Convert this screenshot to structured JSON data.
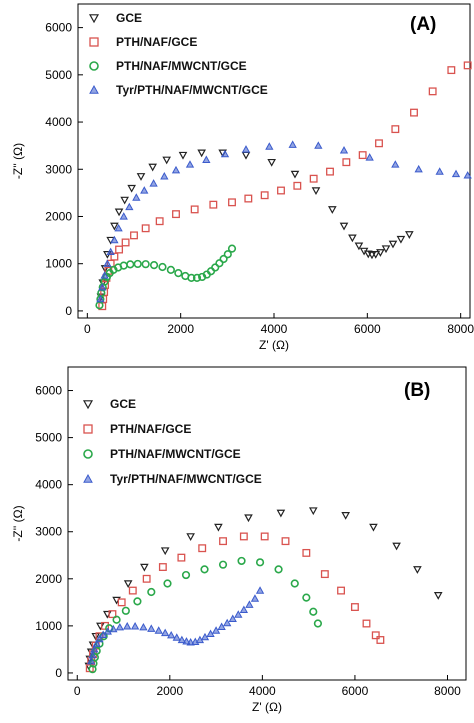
{
  "chart_data": [
    {
      "type": "scatter",
      "panel_label": "(A)",
      "xlabel": "Z' (Ω)",
      "ylabel": "-Z'' (Ω)",
      "xlim": [
        -200,
        8200
      ],
      "ylim": [
        -150,
        6500
      ],
      "x_ticks": [
        0,
        2000,
        4000,
        6000,
        8000
      ],
      "y_ticks": [
        0,
        1000,
        2000,
        3000,
        4000,
        5000,
        6000
      ],
      "legend_position": "top-left",
      "series": [
        {
          "name": "GCE",
          "color": "#222222",
          "marker": "triangle-down",
          "x": [
            290,
            330,
            380,
            430,
            500,
            580,
            680,
            800,
            950,
            1150,
            1400,
            1700,
            2050,
            2450,
            2900,
            3400,
            3950,
            4450,
            4900,
            5250,
            5500,
            5680,
            5820,
            5930,
            6020,
            6100,
            6180,
            6280,
            6400,
            6550,
            6720,
            6900
          ],
          "y": [
            300,
            600,
            900,
            1200,
            1500,
            1800,
            2100,
            2350,
            2600,
            2850,
            3050,
            3200,
            3300,
            3350,
            3350,
            3300,
            3150,
            2900,
            2550,
            2150,
            1800,
            1550,
            1380,
            1270,
            1210,
            1190,
            1200,
            1240,
            1320,
            1420,
            1520,
            1620
          ]
        },
        {
          "name": "PTH/NAF/GCE",
          "color": "#d9534f",
          "marker": "square",
          "x": [
            320,
            340,
            360,
            380,
            410,
            450,
            500,
            580,
            680,
            820,
            1000,
            1250,
            1550,
            1900,
            2300,
            2700,
            3100,
            3450,
            3800,
            4150,
            4500,
            4850,
            5200,
            5550,
            5900,
            6250,
            6600,
            7000,
            7400,
            7800,
            8150
          ],
          "y": [
            100,
            250,
            400,
            550,
            700,
            850,
            1000,
            1150,
            1300,
            1450,
            1600,
            1750,
            1900,
            2050,
            2150,
            2250,
            2300,
            2380,
            2450,
            2550,
            2650,
            2800,
            2950,
            3150,
            3300,
            3550,
            3850,
            4200,
            4650,
            5100,
            5200
          ]
        },
        {
          "name": "PTH/NAF/MWCNT/GCE",
          "color": "#2aa84a",
          "marker": "circle",
          "x": [
            260,
            280,
            300,
            330,
            370,
            420,
            480,
            560,
            660,
            780,
            920,
            1080,
            1250,
            1430,
            1610,
            1790,
            1950,
            2100,
            2230,
            2350,
            2460,
            2560,
            2650,
            2740,
            2830,
            2920,
            3010,
            3100
          ],
          "y": [
            120,
            250,
            380,
            500,
            620,
            720,
            800,
            870,
            920,
            960,
            985,
            995,
            990,
            970,
            930,
            870,
            800,
            740,
            700,
            700,
            720,
            770,
            840,
            920,
            1010,
            1100,
            1200,
            1320
          ]
        },
        {
          "name": "Tyr/PTH/NAF/MWCNT/GCE",
          "color": "#3b5bcc",
          "marker": "triangle-up",
          "x": [
            280,
            320,
            370,
            430,
            500,
            580,
            670,
            780,
            900,
            1050,
            1220,
            1420,
            1650,
            1900,
            2200,
            2550,
            2950,
            3400,
            3900,
            4400,
            4950,
            5500,
            6050,
            6600,
            7100,
            7550,
            7900,
            8150
          ],
          "y": [
            250,
            500,
            750,
            1000,
            1250,
            1500,
            1750,
            2000,
            2200,
            2400,
            2550,
            2700,
            2850,
            2980,
            3100,
            3200,
            3320,
            3420,
            3480,
            3520,
            3500,
            3400,
            3250,
            3100,
            3000,
            2950,
            2900,
            2870
          ]
        }
      ]
    },
    {
      "type": "scatter",
      "panel_label": "(B)",
      "xlabel": "Z' (Ω)",
      "ylabel": "-Z'' (Ω)",
      "xlim": [
        -200,
        8400
      ],
      "ylim": [
        -150,
        6500
      ],
      "x_ticks": [
        0,
        2000,
        4000,
        6000,
        8000
      ],
      "y_ticks": [
        0,
        1000,
        2000,
        3000,
        4000,
        5000,
        6000
      ],
      "legend_position": "top-left",
      "series": [
        {
          "name": "GCE",
          "color": "#222222",
          "marker": "triangle-down",
          "x": [
            250,
            270,
            300,
            340,
            400,
            500,
            650,
            850,
            1100,
            1450,
            1900,
            2450,
            3050,
            3700,
            4400,
            5100,
            5800,
            6400,
            6900,
            7350,
            7800
          ],
          "y": [
            150,
            300,
            450,
            600,
            780,
            1000,
            1250,
            1550,
            1900,
            2250,
            2600,
            2900,
            3100,
            3300,
            3400,
            3450,
            3350,
            3100,
            2700,
            2200,
            1650
          ]
        },
        {
          "name": "PTH/NAF/GCE",
          "color": "#d9534f",
          "marker": "square",
          "x": [
            270,
            300,
            340,
            400,
            480,
            600,
            760,
            960,
            1200,
            1500,
            1850,
            2250,
            2700,
            3150,
            3600,
            4050,
            4500,
            4950,
            5350,
            5700,
            6000,
            6250,
            6450,
            6550
          ],
          "y": [
            100,
            250,
            400,
            580,
            780,
            1000,
            1250,
            1500,
            1750,
            2000,
            2250,
            2450,
            2650,
            2800,
            2900,
            2900,
            2800,
            2550,
            2100,
            1750,
            1400,
            1050,
            800,
            700
          ]
        },
        {
          "name": "PTH/NAF/MWCNT/GCE",
          "color": "#2aa84a",
          "marker": "circle",
          "x": [
            330,
            350,
            380,
            420,
            480,
            570,
            690,
            850,
            1050,
            1300,
            1600,
            1950,
            2350,
            2750,
            3150,
            3550,
            3950,
            4350,
            4700,
            4950,
            5100,
            5200
          ],
          "y": [
            80,
            200,
            330,
            470,
            620,
            780,
            950,
            1130,
            1320,
            1520,
            1720,
            1900,
            2080,
            2200,
            2300,
            2380,
            2350,
            2200,
            1900,
            1600,
            1300,
            1050
          ]
        },
        {
          "name": "Tyr/PTH/NAF/MWCNT/GCE",
          "color": "#3b5bcc",
          "marker": "triangle-up",
          "x": [
            300,
            330,
            370,
            420,
            480,
            560,
            660,
            780,
            920,
            1080,
            1250,
            1430,
            1600,
            1760,
            1900,
            2030,
            2150,
            2260,
            2360,
            2450,
            2550,
            2650,
            2760,
            2880,
            3000,
            3120,
            3240,
            3360,
            3480,
            3600,
            3720,
            3840,
            3950
          ],
          "y": [
            250,
            380,
            500,
            620,
            720,
            810,
            880,
            930,
            970,
            990,
            990,
            970,
            940,
            900,
            850,
            800,
            750,
            700,
            670,
            650,
            660,
            700,
            760,
            830,
            900,
            980,
            1060,
            1150,
            1240,
            1340,
            1450,
            1580,
            1750
          ]
        }
      ]
    }
  ]
}
